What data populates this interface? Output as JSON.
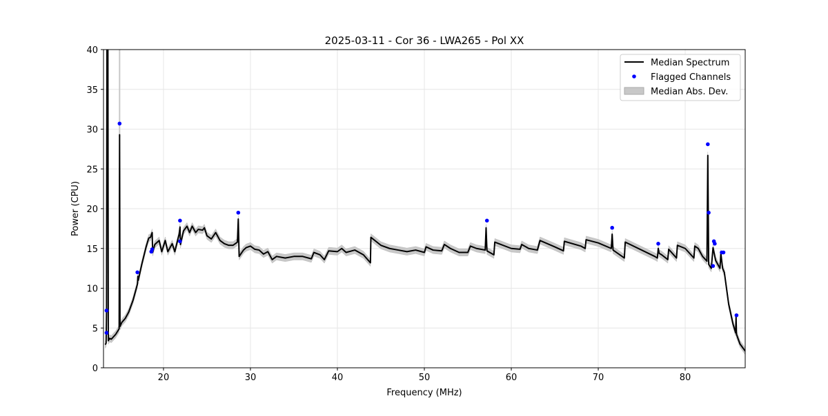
{
  "chart_data": {
    "type": "line",
    "title": "2025-03-11 - Cor 36 - LWA265 - Pol XX",
    "xlabel": "Frequency (MHz)",
    "ylabel": "Power (CPU)",
    "xlim": [
      13.1,
      86.9
    ],
    "ylim": [
      0,
      40
    ],
    "xticks": [
      20,
      30,
      40,
      50,
      60,
      70,
      80
    ],
    "yticks": [
      0,
      5,
      10,
      15,
      20,
      25,
      30,
      35,
      40
    ],
    "grid": true,
    "legend_position": "top-right",
    "legend": [
      "Median Spectrum",
      "Flagged Channels",
      "Median Abs. Dev."
    ],
    "colors": {
      "median": "#000000",
      "flagged": "#0000ff",
      "mad": "#c8c8c8"
    },
    "median_abs_dev": 0.45,
    "median_spectrum": [
      [
        13.3,
        2.9
      ],
      [
        13.4,
        3.1
      ],
      [
        13.45,
        7.2
      ],
      [
        13.5,
        45
      ],
      [
        13.6,
        45
      ],
      [
        13.65,
        3.4
      ],
      [
        13.8,
        3.7
      ],
      [
        14.0,
        3.6
      ],
      [
        14.5,
        4.2
      ],
      [
        14.9,
        4.9
      ],
      [
        14.95,
        29.3
      ],
      [
        15.0,
        5.2
      ],
      [
        15.2,
        5.7
      ],
      [
        15.6,
        6.2
      ],
      [
        16.0,
        7.0
      ],
      [
        16.5,
        8.5
      ],
      [
        17.0,
        10.5
      ],
      [
        17.05,
        11.5
      ],
      [
        17.1,
        11.0
      ],
      [
        17.5,
        13.0
      ],
      [
        18.0,
        15.2
      ],
      [
        18.3,
        16.3
      ],
      [
        18.5,
        16.4
      ],
      [
        18.7,
        17.0
      ],
      [
        18.75,
        14.5
      ],
      [
        19.0,
        15.5
      ],
      [
        19.3,
        15.8
      ],
      [
        19.5,
        16.0
      ],
      [
        19.8,
        14.6
      ],
      [
        20.2,
        16.0
      ],
      [
        20.5,
        14.6
      ],
      [
        21.0,
        15.6
      ],
      [
        21.3,
        14.6
      ],
      [
        21.8,
        16.8
      ],
      [
        21.9,
        17.7
      ],
      [
        21.95,
        15.5
      ],
      [
        22.3,
        17.2
      ],
      [
        22.7,
        17.8
      ],
      [
        23.0,
        17.0
      ],
      [
        23.3,
        17.8
      ],
      [
        23.7,
        17.0
      ],
      [
        24.0,
        17.4
      ],
      [
        24.5,
        17.3
      ],
      [
        24.7,
        17.6
      ],
      [
        25.0,
        16.6
      ],
      [
        25.5,
        16.2
      ],
      [
        26.0,
        17.0
      ],
      [
        26.5,
        16.0
      ],
      [
        27.0,
        15.6
      ],
      [
        27.5,
        15.4
      ],
      [
        28.0,
        15.4
      ],
      [
        28.5,
        15.8
      ],
      [
        28.6,
        18.7
      ],
      [
        28.7,
        14.0
      ],
      [
        29.2,
        14.8
      ],
      [
        29.5,
        15.1
      ],
      [
        30.0,
        15.3
      ],
      [
        30.5,
        14.9
      ],
      [
        31.0,
        14.8
      ],
      [
        31.5,
        14.3
      ],
      [
        32.0,
        14.6
      ],
      [
        32.5,
        13.6
      ],
      [
        33.0,
        14.0
      ],
      [
        34.0,
        13.8
      ],
      [
        35.0,
        14.0
      ],
      [
        36.0,
        14.0
      ],
      [
        37.0,
        13.7
      ],
      [
        37.3,
        14.5
      ],
      [
        38.0,
        14.2
      ],
      [
        38.5,
        13.6
      ],
      [
        39.0,
        14.7
      ],
      [
        40.0,
        14.6
      ],
      [
        40.5,
        15.0
      ],
      [
        41.0,
        14.5
      ],
      [
        42.0,
        14.8
      ],
      [
        43.0,
        14.2
      ],
      [
        43.8,
        13.2
      ],
      [
        43.85,
        16.4
      ],
      [
        45.0,
        15.4
      ],
      [
        46.0,
        15.0
      ],
      [
        47.0,
        14.8
      ],
      [
        48.0,
        14.6
      ],
      [
        49.0,
        14.8
      ],
      [
        50.0,
        14.5
      ],
      [
        50.2,
        15.2
      ],
      [
        51.0,
        14.8
      ],
      [
        52.0,
        14.7
      ],
      [
        52.3,
        15.5
      ],
      [
        53.0,
        15.0
      ],
      [
        54.0,
        14.5
      ],
      [
        55.0,
        14.5
      ],
      [
        55.3,
        15.3
      ],
      [
        56.0,
        15.0
      ],
      [
        57.0,
        14.8
      ],
      [
        57.1,
        17.6
      ],
      [
        57.2,
        14.7
      ],
      [
        58.0,
        14.2
      ],
      [
        58.1,
        15.8
      ],
      [
        60.0,
        15.0
      ],
      [
        61.0,
        14.9
      ],
      [
        61.2,
        15.5
      ],
      [
        62.0,
        15.0
      ],
      [
        63.0,
        14.8
      ],
      [
        63.3,
        16.0
      ],
      [
        65.0,
        15.2
      ],
      [
        66.0,
        14.7
      ],
      [
        66.1,
        15.9
      ],
      [
        68.0,
        15.3
      ],
      [
        68.5,
        15.0
      ],
      [
        68.6,
        16.1
      ],
      [
        70.0,
        15.7
      ],
      [
        71.5,
        15.0
      ],
      [
        71.6,
        16.8
      ],
      [
        71.7,
        14.8
      ],
      [
        73.0,
        13.8
      ],
      [
        73.1,
        15.8
      ],
      [
        76.5,
        14.0
      ],
      [
        76.8,
        13.8
      ],
      [
        76.9,
        15.0
      ],
      [
        77.0,
        14.4
      ],
      [
        77.3,
        14.2
      ],
      [
        78.0,
        13.6
      ],
      [
        78.1,
        14.9
      ],
      [
        79.0,
        13.8
      ],
      [
        79.1,
        15.4
      ],
      [
        80.0,
        15.0
      ],
      [
        81.0,
        13.8
      ],
      [
        81.1,
        15.3
      ],
      [
        81.5,
        15.0
      ],
      [
        82.0,
        14.0
      ],
      [
        82.5,
        13.4
      ],
      [
        82.6,
        26.7
      ],
      [
        82.7,
        13.0
      ],
      [
        83.0,
        12.5
      ],
      [
        83.2,
        15.1
      ],
      [
        83.5,
        13.5
      ],
      [
        84.0,
        12.5
      ],
      [
        84.1,
        14.4
      ],
      [
        84.3,
        12.5
      ],
      [
        84.5,
        12.0
      ],
      [
        85.0,
        8.0
      ],
      [
        85.5,
        5.5
      ],
      [
        85.8,
        4.4
      ],
      [
        85.85,
        6.4
      ],
      [
        85.9,
        4.2
      ],
      [
        86.3,
        3.0
      ],
      [
        86.9,
        2.1
      ]
    ],
    "flagged_channels": [
      [
        13.45,
        7.2
      ],
      [
        13.45,
        4.4
      ],
      [
        14.95,
        30.7
      ],
      [
        17.0,
        12.0
      ],
      [
        18.6,
        14.6
      ],
      [
        18.7,
        14.9
      ],
      [
        21.9,
        18.5
      ],
      [
        21.9,
        15.9
      ],
      [
        28.6,
        19.5
      ],
      [
        57.2,
        18.5
      ],
      [
        71.6,
        17.6
      ],
      [
        76.9,
        15.6
      ],
      [
        82.6,
        28.1
      ],
      [
        82.7,
        19.5
      ],
      [
        83.3,
        15.9
      ],
      [
        83.4,
        15.6
      ],
      [
        83.2,
        12.8
      ],
      [
        84.2,
        14.5
      ],
      [
        84.4,
        14.5
      ],
      [
        85.9,
        6.6
      ]
    ]
  }
}
